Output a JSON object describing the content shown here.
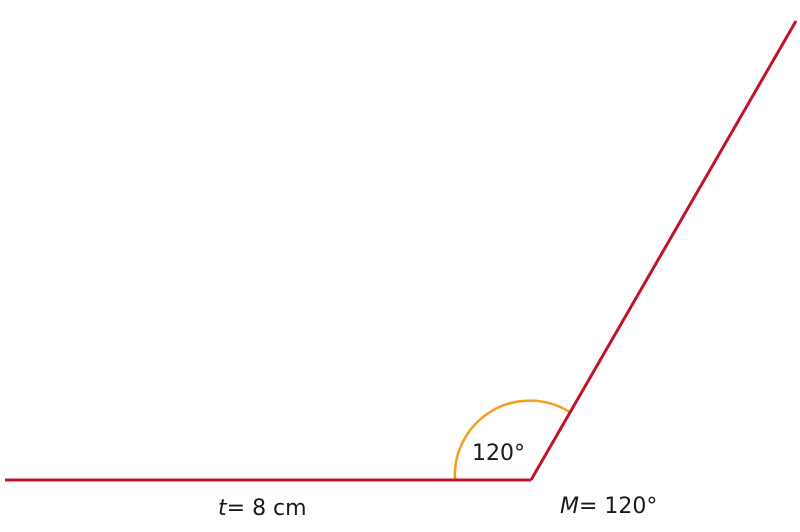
{
  "diagram": {
    "angle_value": "120°",
    "base_segment": {
      "variable": "t",
      "value": "= 8 cm"
    },
    "angle_measure": {
      "variable": "M",
      "value": "= 120°"
    },
    "colors": {
      "line": "#c0132c",
      "arc": "#f0a020",
      "text": "#1a1a1a",
      "background": "#ffffff"
    }
  }
}
